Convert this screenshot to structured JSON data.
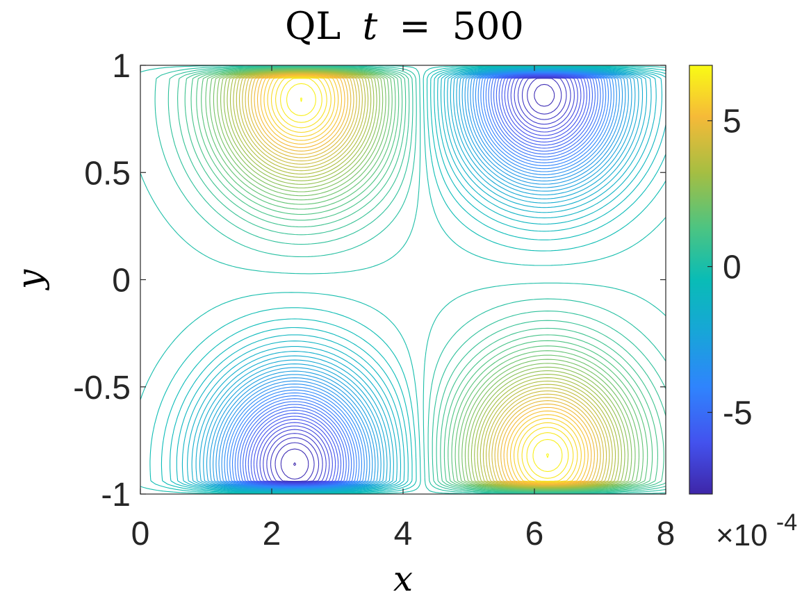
{
  "chart_data": {
    "type": "contour",
    "title_prefix": "QL",
    "title_var": "t",
    "title_eq": "=",
    "title_value": "500",
    "xlabel": "x",
    "ylabel": "y",
    "xlim": [
      0,
      8
    ],
    "ylim": [
      -1,
      1
    ],
    "x_ticks": [
      0,
      2,
      4,
      6,
      8
    ],
    "x_tick_labels": [
      "0",
      "2",
      "4",
      "6",
      "8"
    ],
    "y_ticks": [
      1,
      0.5,
      0,
      -0.5,
      -1
    ],
    "y_tick_labels": [
      "1",
      "0.5",
      "0",
      "-0.5",
      "-1"
    ],
    "colorbar": {
      "colormap": "parula",
      "range": [
        -7.8,
        6.9
      ],
      "ticks": [
        5,
        0,
        -5
      ],
      "tick_labels": [
        "5",
        "0",
        "-5"
      ],
      "multiplier_base": "×10",
      "multiplier_exponent": "-4"
    },
    "extrema": [
      {
        "kind": "max",
        "x": 2.45,
        "y": 0.84,
        "value": 6.8
      },
      {
        "kind": "min",
        "x": 6.15,
        "y": 0.86,
        "value": -7.6
      },
      {
        "kind": "min",
        "x": 2.35,
        "y": -0.86,
        "value": -7.7
      },
      {
        "kind": "max",
        "x": 6.2,
        "y": -0.82,
        "value": 6.8
      }
    ],
    "contour_levels": 70,
    "grid": false,
    "legend": "none"
  }
}
